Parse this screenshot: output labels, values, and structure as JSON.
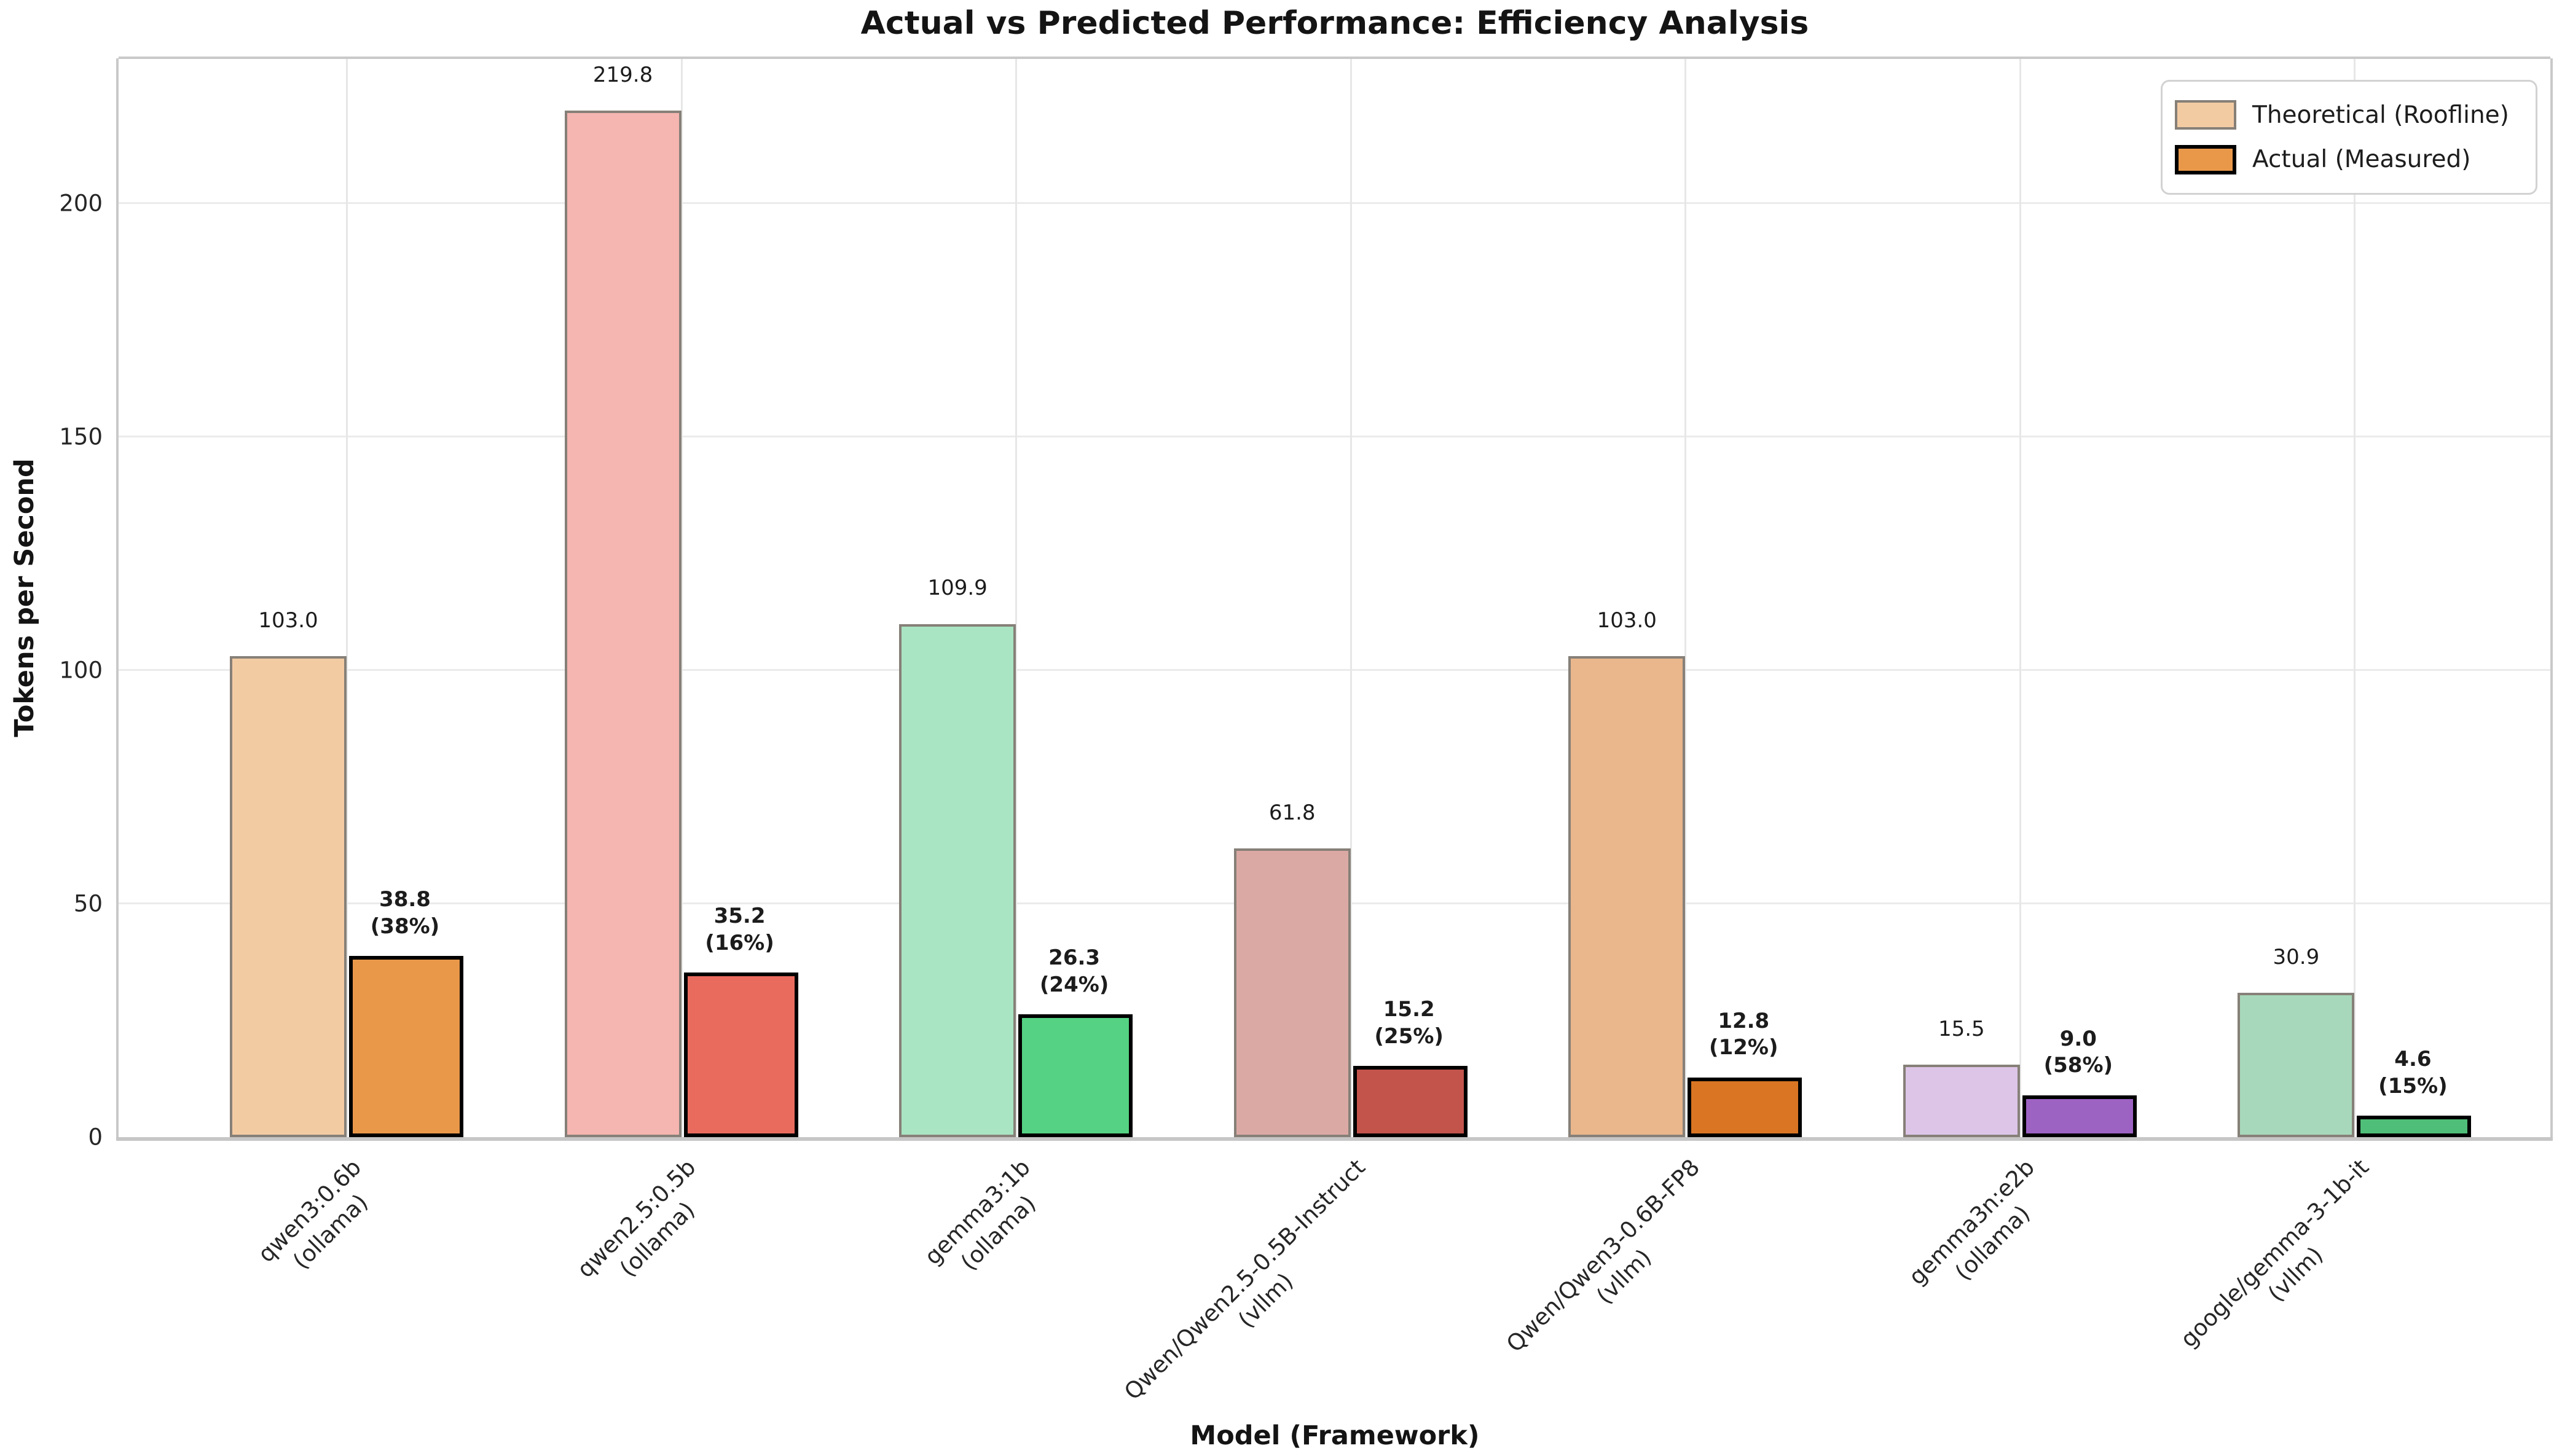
{
  "title": "Actual vs Predicted Performance: Efficiency Analysis",
  "axes": {
    "y_label": "Tokens per Second",
    "x_label": "Model (Framework)",
    "y_ticks": [
      0,
      50,
      100,
      150,
      200
    ],
    "y_max": 231
  },
  "legend": [
    {
      "label": "Theoretical (Roofline)",
      "fill": "#F3CBA3",
      "border": "#868078"
    },
    {
      "label": "Actual (Measured)",
      "fill": "#E9984A",
      "border": "#000000"
    }
  ],
  "chart_data": {
    "type": "bar",
    "title": "Actual vs Predicted Performance: Efficiency Analysis",
    "xlabel": "Model (Framework)",
    "ylabel": "Tokens per Second",
    "ylim": [
      0,
      231
    ],
    "grid": "both",
    "legend_position": "upper right",
    "categories": [
      "qwen3:0.6b (ollama)",
      "qwen2.5:0.5b (ollama)",
      "gemma3:1b (ollama)",
      "Qwen/Qwen2.5-0.5B-Instruct (vllm)",
      "Qwen/Qwen3-0.6B-FP8 (vllm)",
      "gemma3n:e2b (ollama)",
      "google/gemma-3-1b-it (vllm)"
    ],
    "series": [
      {
        "name": "Theoretical (Roofline)",
        "values": [
          103.0,
          219.8,
          109.9,
          61.8,
          103.0,
          15.5,
          30.9
        ]
      },
      {
        "name": "Actual (Measured)",
        "values": [
          38.8,
          35.2,
          26.3,
          15.2,
          12.8,
          9.0,
          4.6
        ]
      }
    ],
    "efficiency_percent": [
      38,
      16,
      24,
      25,
      12,
      58,
      15
    ],
    "groups": [
      {
        "model": "qwen3:0.6b",
        "framework": "ollama",
        "theoretical": {
          "value": 103.0,
          "color": "#F3CBA3"
        },
        "actual": {
          "value": 38.8,
          "pct": "38%",
          "color": "#E9984A"
        }
      },
      {
        "model": "qwen2.5:0.5b",
        "framework": "ollama",
        "theoretical": {
          "value": 219.8,
          "color": "#F5B5B0"
        },
        "actual": {
          "value": 35.2,
          "pct": "16%",
          "color": "#E96B5E"
        }
      },
      {
        "model": "gemma3:1b",
        "framework": "ollama",
        "theoretical": {
          "value": 109.9,
          "color": "#AAE5C3"
        },
        "actual": {
          "value": 26.3,
          "pct": "24%",
          "color": "#55D283"
        }
      },
      {
        "model": "Qwen/Qwen2.5-0.5B-Instruct",
        "framework": "vllm",
        "theoretical": {
          "value": 61.8,
          "color": "#DBA9A4"
        },
        "actual": {
          "value": 15.2,
          "pct": "25%",
          "color": "#C2544C"
        }
      },
      {
        "model": "Qwen/Qwen3-0.6B-FP8",
        "framework": "vllm",
        "theoretical": {
          "value": 103.0,
          "color": "#EAB68C"
        },
        "actual": {
          "value": 12.8,
          "pct": "12%",
          "color": "#D97523"
        }
      },
      {
        "model": "gemma3n:e2b",
        "framework": "ollama",
        "theoretical": {
          "value": 15.5,
          "color": "#DDC5E8"
        },
        "actual": {
          "value": 9.0,
          "pct": "58%",
          "color": "#9D63C3"
        }
      },
      {
        "model": "google/gemma-3-1b-it",
        "framework": "vllm",
        "theoretical": {
          "value": 30.9,
          "color": "#A8D8BB"
        },
        "actual": {
          "value": 4.6,
          "pct": "15%",
          "color": "#4FBE78"
        }
      }
    ]
  }
}
